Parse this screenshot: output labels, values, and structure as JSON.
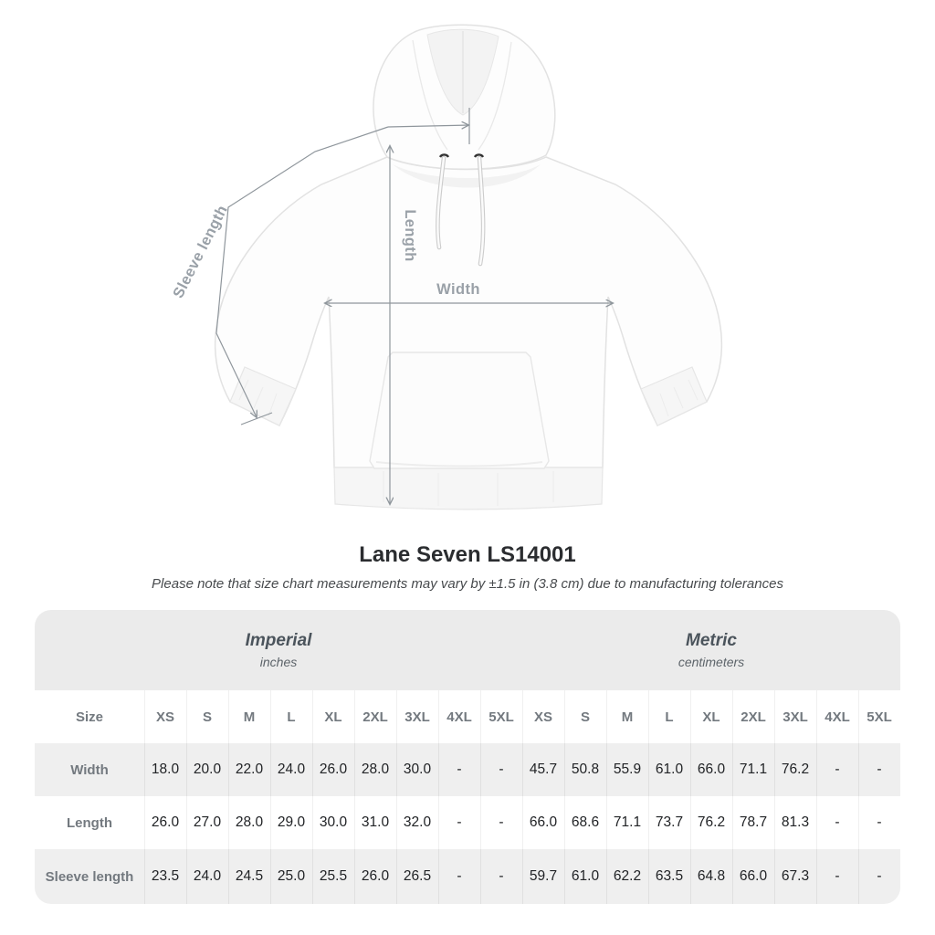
{
  "page": {
    "title": "Lane Seven LS14001",
    "subtitle": "Please note that size chart measurements may vary by ±1.5 in (3.8 cm) due to manufacturing tolerances"
  },
  "illustration": {
    "garment": "hoodie",
    "labels": {
      "sleeve_length": "Sleeve length",
      "length": "Length",
      "width": "Width"
    }
  },
  "colors": {
    "annotation_line": "#8f969c",
    "annotation_label": "#9aa1a8",
    "band_background": "#ebebeb",
    "stripe_background": "#efefef",
    "header_text": "#73797f",
    "value_text": "#212326"
  },
  "chart_data": {
    "type": "table",
    "title": "Lane Seven LS14001",
    "note": "Please note that size chart measurements may vary by ±1.5 in (3.8 cm) due to manufacturing tolerances",
    "sections": [
      {
        "label": "Imperial",
        "sub": "inches"
      },
      {
        "label": "Metric",
        "sub": "centimeters"
      }
    ],
    "size_column_header": "Size",
    "columns": [
      "XS",
      "S",
      "M",
      "L",
      "XL",
      "2XL",
      "3XL",
      "4XL",
      "5XL",
      "XS",
      "S",
      "M",
      "L",
      "XL",
      "2XL",
      "3XL",
      "4XL",
      "5XL"
    ],
    "rows": [
      {
        "label": "Width",
        "values": [
          "18.0",
          "20.0",
          "22.0",
          "24.0",
          "26.0",
          "28.0",
          "30.0",
          "-",
          "-",
          "45.7",
          "50.8",
          "55.9",
          "61.0",
          "66.0",
          "71.1",
          "76.2",
          "-",
          "-"
        ]
      },
      {
        "label": "Length",
        "values": [
          "26.0",
          "27.0",
          "28.0",
          "29.0",
          "30.0",
          "31.0",
          "32.0",
          "-",
          "-",
          "66.0",
          "68.6",
          "71.1",
          "73.7",
          "76.2",
          "78.7",
          "81.3",
          "-",
          "-"
        ]
      },
      {
        "label": "Sleeve length",
        "values": [
          "23.5",
          "24.0",
          "24.5",
          "25.0",
          "25.5",
          "26.0",
          "26.5",
          "-",
          "-",
          "59.7",
          "61.0",
          "62.2",
          "63.5",
          "64.8",
          "66.0",
          "67.3",
          "-",
          "-"
        ]
      }
    ]
  }
}
